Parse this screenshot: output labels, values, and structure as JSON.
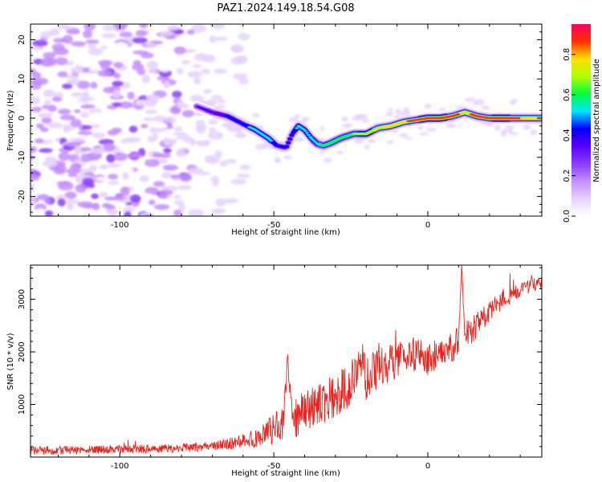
{
  "title": "PAZ1.2024.149.18.54.G08",
  "chart_data": [
    {
      "type": "heatmap",
      "xlabel": "Height of straight line (km)",
      "ylabel": "Frequency (Hz)",
      "xlim": [
        -129,
        37
      ],
      "ylim": [
        -25,
        24
      ],
      "x_ticks": [
        -100,
        -50,
        0
      ],
      "y_ticks": [
        -20,
        -10,
        0,
        10,
        20
      ],
      "colorbar": {
        "label": "Normalized spectral amplitude",
        "range": [
          0.0,
          0.95
        ],
        "ticks": [
          0.0,
          0.2,
          0.4,
          0.6,
          0.8
        ],
        "colors": [
          "#ffffff",
          "#e6d2ff",
          "#c48dff",
          "#8a3cff",
          "#5a00ff",
          "#0000ff",
          "#00e5ff",
          "#00ff40",
          "#b0ff00",
          "#ffe000",
          "#ff3000",
          "#ff0060"
        ]
      },
      "ridge": {
        "x": [
          -75,
          -70,
          -65,
          -60,
          -56,
          -52,
          -49,
          -46,
          -44,
          -42,
          -40,
          -38,
          -36,
          -34,
          -32,
          -28,
          -24,
          -20,
          -16,
          -12,
          -8,
          -4,
          0,
          4,
          8,
          12,
          16,
          20,
          24,
          28,
          32,
          37
        ],
        "freq": [
          3,
          1.5,
          0.5,
          -1.5,
          -3,
          -5,
          -7,
          -7.5,
          -4,
          -2,
          -3,
          -5,
          -6.5,
          -7,
          -6.5,
          -5,
          -4,
          -4,
          -2.5,
          -2,
          -1,
          -0.5,
          0,
          0,
          0.5,
          1.5,
          0.5,
          0,
          0,
          0,
          0,
          0
        ],
        "peak_amplitude": [
          0.3,
          0.35,
          0.4,
          0.45,
          0.5,
          0.5,
          0.45,
          0.4,
          0.45,
          0.5,
          0.5,
          0.5,
          0.55,
          0.6,
          0.6,
          0.6,
          0.65,
          0.7,
          0.75,
          0.8,
          0.8,
          0.85,
          0.9,
          0.9,
          0.85,
          0.8,
          0.85,
          0.85,
          0.9,
          0.85,
          0.8,
          0.75
        ]
      }
    },
    {
      "type": "line",
      "xlabel": "Height of straight line (km)",
      "ylabel": "SNR (10 * v/v)",
      "xlim": [
        -129,
        37
      ],
      "ylim": [
        0,
        3650
      ],
      "x_ticks": [
        -100,
        -50,
        0
      ],
      "y_ticks": [
        1000,
        2000,
        3000
      ],
      "series": [
        {
          "color": "#e8241e",
          "x": [
            -129,
            -120,
            -110,
            -100,
            -90,
            -80,
            -70,
            -65,
            -60,
            -55,
            -50,
            -47,
            -45.5,
            -44,
            -40,
            -35,
            -30,
            -25,
            -22,
            -20,
            -18,
            -15,
            -10,
            -5,
            -2,
            0,
            5,
            10,
            11,
            12,
            15,
            20,
            25,
            30,
            35,
            37
          ],
          "values": [
            120,
            130,
            140,
            150,
            150,
            170,
            210,
            250,
            300,
            380,
            520,
            700,
            1900,
            700,
            900,
            1000,
            1100,
            1350,
            1950,
            1500,
            1600,
            1750,
            1850,
            1950,
            2000,
            1850,
            2050,
            2100,
            3650,
            2300,
            2450,
            2750,
            3050,
            3150,
            3300,
            3350
          ],
          "noise_amplitude": [
            80,
            80,
            80,
            80,
            80,
            80,
            90,
            110,
            140,
            200,
            300,
            350,
            150,
            400,
            400,
            400,
            450,
            500,
            350,
            450,
            400,
            400,
            350,
            350,
            300,
            300,
            300,
            250,
            100,
            250,
            250,
            200,
            200,
            150,
            150,
            150
          ]
        }
      ]
    }
  ]
}
